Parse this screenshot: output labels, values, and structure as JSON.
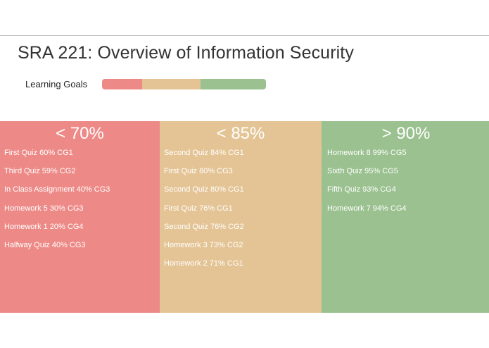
{
  "page": {
    "title": "SRA 221: Overview of Information Security"
  },
  "legend": {
    "label": "Learning Goals",
    "colors": [
      "#ed8a87",
      "#e4c495",
      "#9ac18f"
    ]
  },
  "columns": [
    {
      "header": "< 70%",
      "color": "#ed8a87",
      "items": [
        "First Quiz 60% CG1",
        "Third Quiz 59% CG2",
        "In Class Assignment 40% CG3",
        "Homework 5 30% CG3",
        "Homework 1 20% CG4",
        "Halfway Quiz 40% CG3"
      ]
    },
    {
      "header": "< 85%",
      "color": "#e4c495",
      "items": [
        "Second Quiz 84% CG1",
        "First Quiz 80% CG3",
        "Second Quiz 80% CG1",
        "First Quiz 76% CG1",
        "Second Quiz 76% CG2",
        "Homework 3 73% CG2",
        "Homework 2 71% CG1"
      ]
    },
    {
      "header": "> 90%",
      "color": "#9ac18f",
      "items": [
        "Homework 8 99% CG5",
        "Sixth Quiz 95% CG5",
        "Fifth Quiz 93% CG4",
        "Homework 7 94% CG4"
      ]
    }
  ]
}
